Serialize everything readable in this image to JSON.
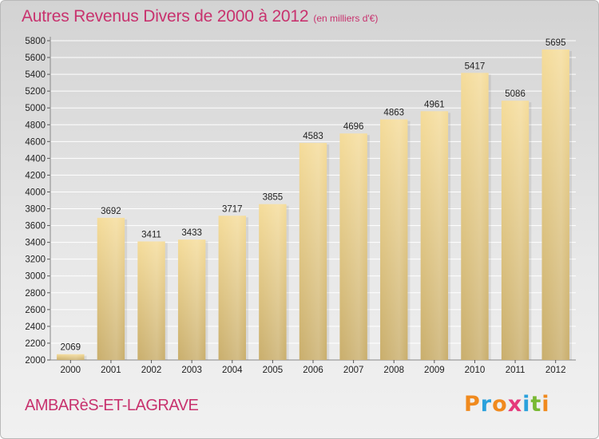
{
  "header": {
    "title": "Autres Revenus Divers de 2000 à 2012",
    "subtitle": "(en milliers d'€)"
  },
  "footer": {
    "commune": "AMBARèS-ET-LAGRAVE",
    "logo": "Proxiti"
  },
  "colors": {
    "title": "#c8326e",
    "bar_light": "#f5dc9a",
    "bar_dark": "#c9ae6c",
    "grid": "#ffffff"
  },
  "chart_data": {
    "type": "bar",
    "title": "Autres Revenus Divers de 2000 à 2012",
    "subtitle": "(en milliers d'€)",
    "categories": [
      "2000",
      "2001",
      "2002",
      "2003",
      "2004",
      "2005",
      "2006",
      "2007",
      "2008",
      "2009",
      "2010",
      "2011",
      "2012"
    ],
    "values": [
      2069,
      3692,
      3411,
      3433,
      3717,
      3855,
      4583,
      4696,
      4863,
      4961,
      5417,
      5086,
      5695
    ],
    "xlabel": "",
    "ylabel": "",
    "ylim": [
      2000,
      5800
    ],
    "yticks": [
      2000,
      2200,
      2400,
      2600,
      2800,
      3000,
      3200,
      3400,
      3600,
      3800,
      4000,
      4200,
      4400,
      4600,
      4800,
      5000,
      5200,
      5400,
      5600,
      5800
    ],
    "grid": true,
    "legend": "none"
  }
}
